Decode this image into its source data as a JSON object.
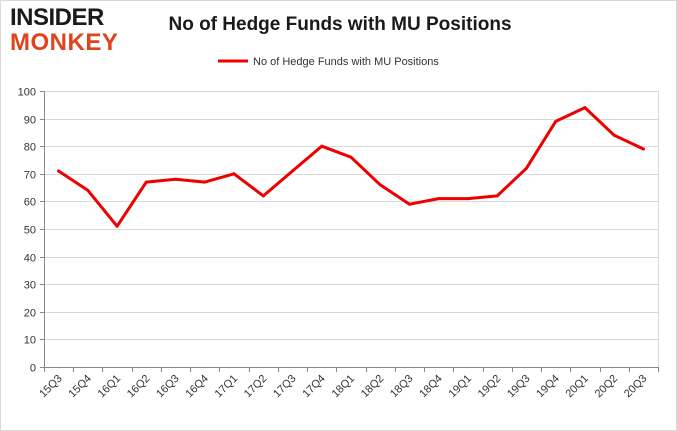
{
  "logo": {
    "line1": "INSIDER",
    "line2": "MONKEY"
  },
  "chart_data": {
    "type": "line",
    "title": "No of Hedge Funds with MU Positions",
    "categories": [
      "15Q3",
      "15Q4",
      "16Q1",
      "16Q2",
      "16Q3",
      "16Q4",
      "17Q1",
      "17Q2",
      "17Q3",
      "17Q4",
      "18Q1",
      "18Q2",
      "18Q3",
      "18Q4",
      "19Q1",
      "19Q2",
      "19Q3",
      "19Q4",
      "20Q1",
      "20Q2",
      "20Q3"
    ],
    "series": [
      {
        "name": "No of Hedge Funds with MU Positions",
        "color": "#ee0000",
        "values": [
          71,
          64,
          51,
          67,
          68,
          67,
          70,
          62,
          71,
          80,
          76,
          66,
          59,
          61,
          61,
          62,
          72,
          89,
          94,
          84,
          79
        ]
      }
    ],
    "ylim": [
      0,
      100
    ],
    "yticks": [
      0,
      10,
      20,
      30,
      40,
      50,
      60,
      70,
      80,
      90,
      100
    ],
    "xlabel": "",
    "ylabel": "",
    "grid": true,
    "legend_position": "top-center"
  }
}
